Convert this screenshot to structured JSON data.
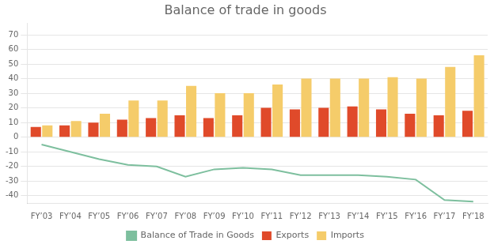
{
  "chart_data": {
    "type": "bar",
    "title": "Balance of trade in goods",
    "categories": [
      "FY’03",
      "FY’04",
      "FY’05",
      "FY’06",
      "FY’07",
      "FY’08",
      "FY’09",
      "FY’10",
      "FY’11",
      "FY’12",
      "FY’13",
      "FY’14",
      "FY’15",
      "FY’16",
      "FY’17",
      "FY’18"
    ],
    "series": [
      {
        "name": "Exports",
        "type": "bar",
        "color": "#e04a2a",
        "values": [
          7,
          8,
          10,
          12,
          13,
          15,
          13,
          15,
          20,
          19,
          20,
          21,
          19,
          16,
          15,
          18
        ]
      },
      {
        "name": "Imports",
        "type": "bar",
        "color": "#f5cc6a",
        "values": [
          8,
          11,
          16,
          25,
          25,
          35,
          30,
          30,
          36,
          40,
          40,
          40,
          41,
          40,
          48,
          56
        ]
      },
      {
        "name": "Balance of Trade in Goods",
        "type": "line",
        "color": "#7dbf9e",
        "values": [
          -5,
          -10,
          -15,
          -19,
          -20,
          -27,
          -22,
          -21,
          -22,
          -26,
          -26,
          -26,
          -27,
          -29,
          -43,
          -44
        ]
      }
    ],
    "ylim": [
      -45,
      78
    ],
    "yticks": [
      -40,
      -30,
      -20,
      -10,
      0,
      10,
      20,
      30,
      40,
      50,
      60,
      70
    ],
    "grid": true,
    "legend": "bottom"
  }
}
